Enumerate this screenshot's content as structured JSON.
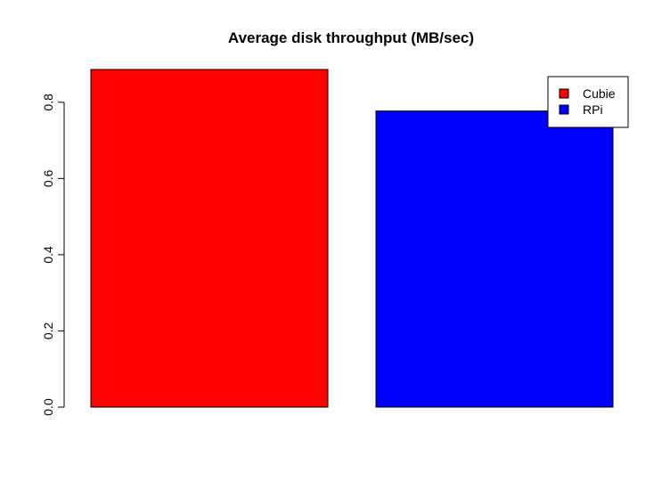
{
  "chart_data": {
    "type": "bar",
    "title": "Average disk throughput (MB/sec)",
    "xlabel": "",
    "ylabel": "",
    "categories": [
      "Cubie",
      "RPi"
    ],
    "values": [
      0.886,
      0.777
    ],
    "colors": [
      "#ff0000",
      "#0000ff"
    ],
    "ylim": [
      0,
      0.886
    ],
    "yticks": [
      0.0,
      0.2,
      0.4,
      0.6,
      0.8
    ],
    "ytick_labels": [
      "0.0",
      "0.2",
      "0.4",
      "0.6",
      "0.8"
    ],
    "grid": false,
    "legend": {
      "position": "top-right",
      "entries": [
        {
          "label": "Cubie",
          "color": "#ff0000"
        },
        {
          "label": "RPi",
          "color": "#0000ff"
        }
      ]
    }
  }
}
